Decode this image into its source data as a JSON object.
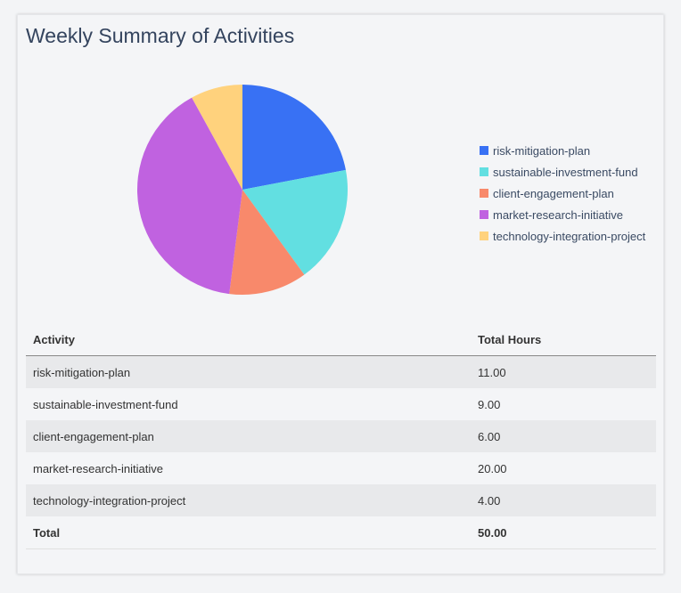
{
  "title": "Weekly Summary of Activities",
  "chart_data": {
    "type": "pie",
    "categories": [
      "risk-mitigation-plan",
      "sustainable-investment-fund",
      "client-engagement-plan",
      "market-research-initiative",
      "technology-integration-project"
    ],
    "values": [
      11,
      9,
      6,
      20,
      4
    ],
    "colors": [
      "#3871f4",
      "#62dfe1",
      "#f8896b",
      "#c062e0",
      "#ffd27d"
    ],
    "legend_placement": "right",
    "start": "top",
    "direction": "clockwise"
  },
  "table": {
    "headers": [
      "Activity",
      "Total Hours"
    ],
    "rows": [
      [
        "risk-mitigation-plan",
        "11.00"
      ],
      [
        "sustainable-investment-fund",
        "9.00"
      ],
      [
        "client-engagement-plan",
        "6.00"
      ],
      [
        "market-research-initiative",
        "20.00"
      ],
      [
        "technology-integration-project",
        "4.00"
      ]
    ],
    "total": [
      "Total",
      "50.00"
    ]
  }
}
